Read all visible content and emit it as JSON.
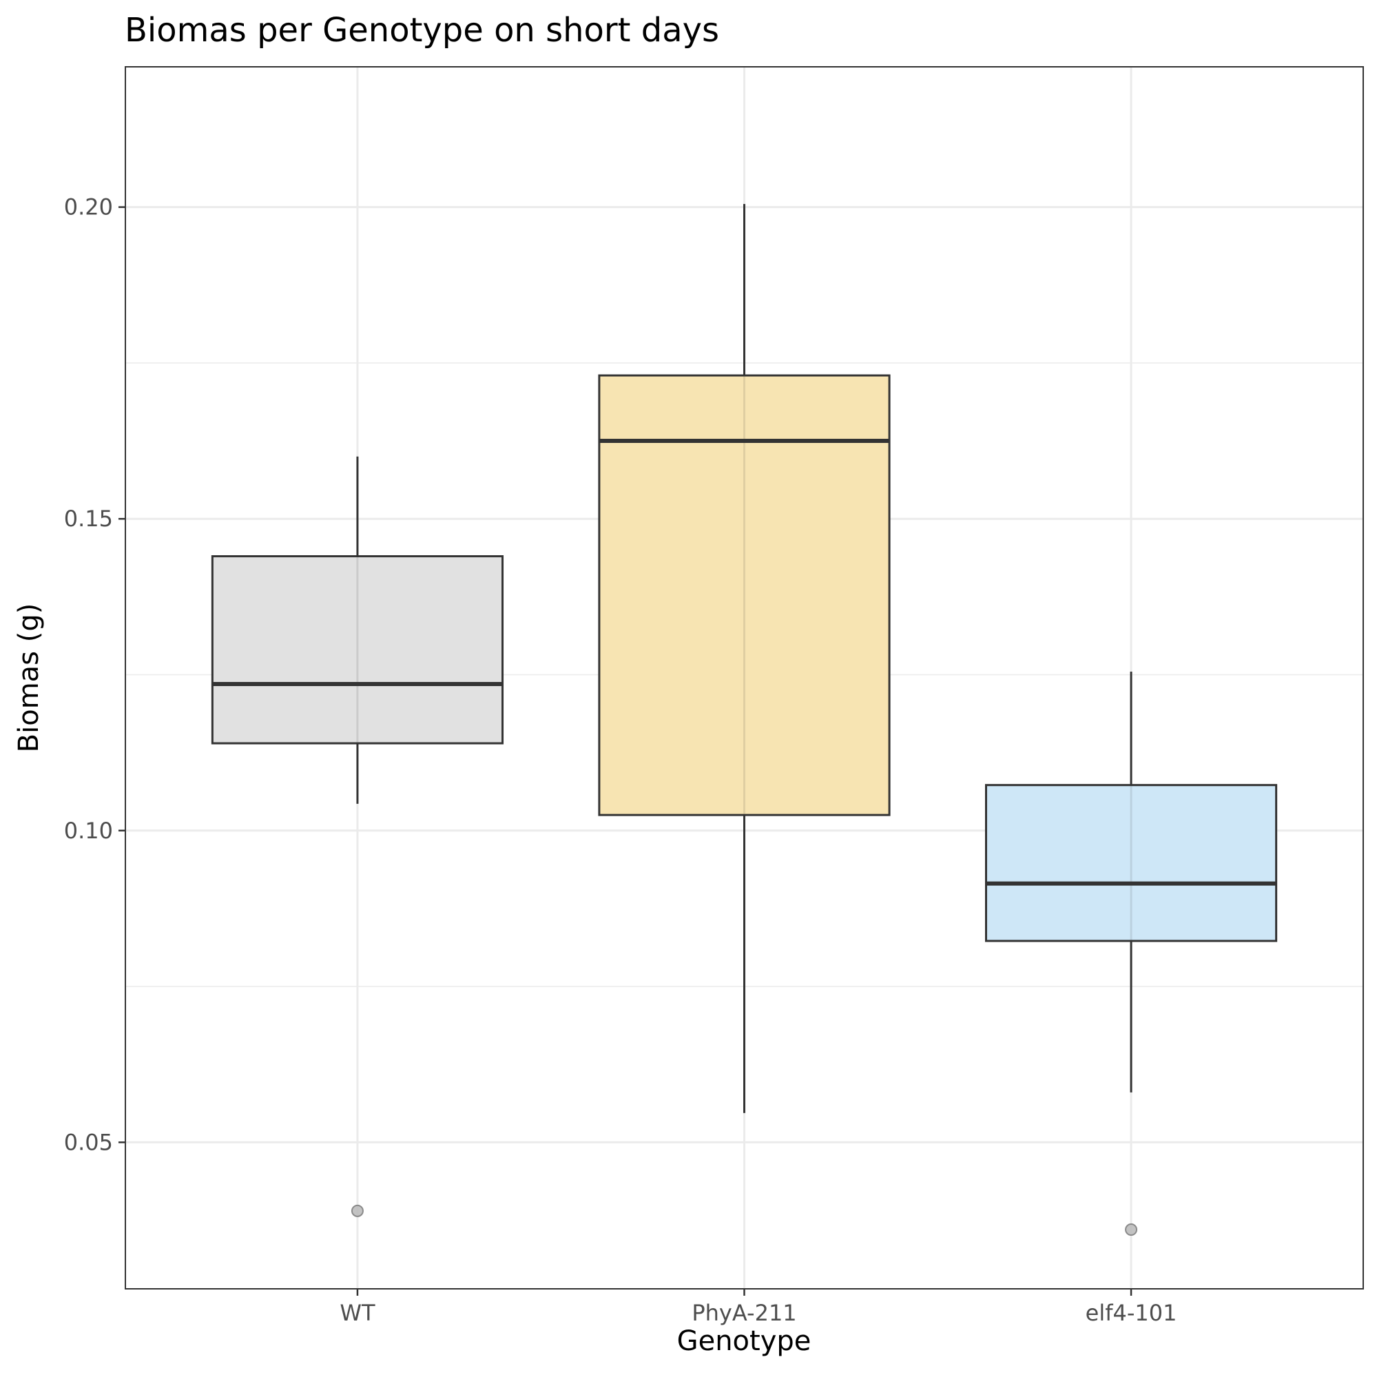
{
  "chart_data": {
    "type": "boxplot",
    "title": "Biomas per Genotype on short days",
    "xlabel": "Genotype",
    "ylabel": "Biomas (g)",
    "ylim": [
      0.0265,
      0.2225
    ],
    "yticks": [
      0.05,
      0.1,
      0.15,
      0.2
    ],
    "ytick_labels": [
      "0.05",
      "0.10",
      "0.15",
      "0.20"
    ],
    "grid": true,
    "categories": [
      "WT",
      "PhyA-211",
      "elf4-101"
    ],
    "boxes": [
      {
        "name": "WT",
        "color": "#e0e0e0",
        "whisker_low": 0.1043,
        "q1": 0.114,
        "median": 0.1235,
        "q3": 0.144,
        "whisker_high": 0.16,
        "outliers": [
          0.039
        ]
      },
      {
        "name": "PhyA-211",
        "color": "#f7e3b0",
        "whisker_low": 0.0547,
        "q1": 0.1025,
        "median": 0.1625,
        "q3": 0.173,
        "whisker_high": 0.2005,
        "outliers": []
      },
      {
        "name": "elf4-101",
        "color": "#cce6f7",
        "whisker_low": 0.058,
        "q1": 0.0823,
        "median": 0.0915,
        "q3": 0.1073,
        "whisker_high": 0.1255,
        "outliers": [
          0.036
        ]
      }
    ]
  }
}
